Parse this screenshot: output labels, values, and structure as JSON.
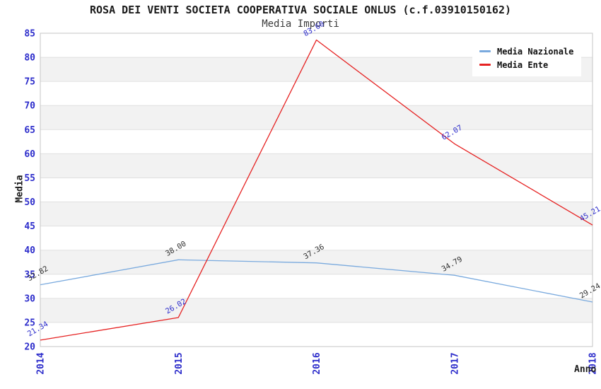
{
  "chart_data": {
    "type": "line",
    "title": "ROSA DEI VENTI SOCIETA COOPERATIVA SOCIALE ONLUS (c.f.03910150162)",
    "subtitle": "Media Importi",
    "xlabel": "Anno",
    "ylabel": "Media",
    "categories": [
      "2014",
      "2015",
      "2016",
      "2017",
      "2018"
    ],
    "series": [
      {
        "name": "Media Nazionale",
        "color": "#7aaade",
        "label_color": "#303030",
        "values": [
          32.82,
          38.0,
          37.36,
          34.79,
          29.24
        ],
        "labels": [
          "32.82",
          "38.00",
          "37.36",
          "34.79",
          "29.24"
        ]
      },
      {
        "name": "Media Ente",
        "color": "#e62222",
        "label_color": "#2d2dcb",
        "values": [
          21.34,
          26.02,
          83.6,
          62.07,
          45.21
        ],
        "labels": [
          "21.34",
          "26.02",
          "83.60",
          "62.07",
          "45.21"
        ]
      }
    ],
    "ylim": [
      20,
      85
    ],
    "ytick_step": 5,
    "ytick_labels": [
      "20",
      "25",
      "30",
      "35",
      "40",
      "45",
      "50",
      "55",
      "60",
      "65",
      "70",
      "75",
      "80",
      "85"
    ],
    "grid": true,
    "legend_position": "top-right",
    "colors": {
      "tick_label": "#2d2dcb",
      "grid_line": "#e0e0e0",
      "band": "#f2f2f2",
      "plot_border": "#c6c6c6",
      "background": "#ffffff"
    }
  }
}
